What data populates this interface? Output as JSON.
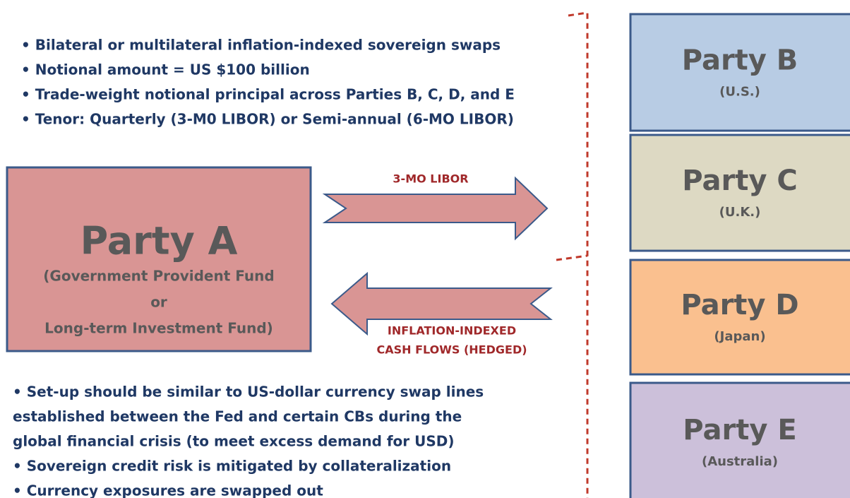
{
  "top_bullets": [
    "• Bilateral or multilateral inflation-indexed sovereign swaps",
    "• Notional amount = US $100 billion",
    "• Trade-weight notional principal across Parties B, C, D, and E",
    "• Tenor: Quarterly (3-M0 LIBOR) or Semi-annual (6-MO LIBOR)"
  ],
  "party_a": {
    "title": "Party A",
    "lines": [
      "(Government Provident Fund",
      "or",
      "Long-term Investment Fund)"
    ]
  },
  "arrows": {
    "right_label": "3-MO LIBOR",
    "left_label": [
      "INFLATION-INDEXED",
      "CASH FLOWS (HEDGED)"
    ]
  },
  "bottom_bullets": [
    "• Set-up should be similar to US-dollar currency swap lines",
    "established between the Fed and certain CBs during the",
    "global financial crisis (to meet excess demand for USD)",
    "• Sovereign credit risk is mitigated by collateralization",
    "• Currency exposures are swapped out"
  ],
  "parties": [
    {
      "title": "Party B",
      "sub": "(U.S.)"
    },
    {
      "title": "Party C",
      "sub": "(U.K.)"
    },
    {
      "title": "Party D",
      "sub": "(Japan)"
    },
    {
      "title": "Party E",
      "sub": "(Australia)"
    }
  ]
}
